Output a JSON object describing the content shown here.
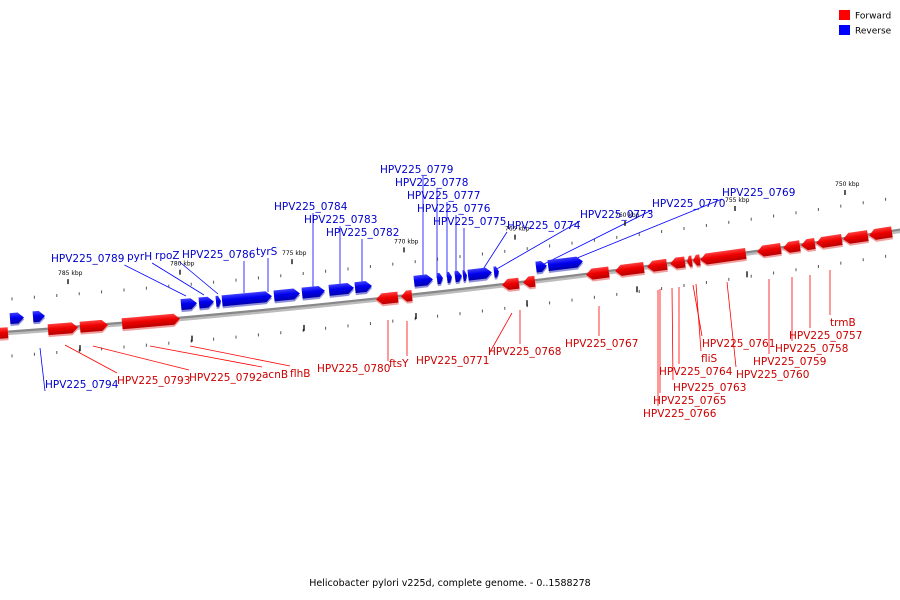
{
  "caption": "Helicobacter pylori v225d, complete genome. - 0..1588278",
  "legend": [
    {
      "label": "Forward",
      "color": "#ff0000"
    },
    {
      "label": "Reverse",
      "color": "#0000ff"
    }
  ],
  "colors": {
    "forward": "#ff0000",
    "forward_label": "#cc0000",
    "reverse": "#0000ff",
    "reverse_label": "#0000cc",
    "backbone": "#888888"
  },
  "ticks": [
    "785 kbp",
    "780 kbp",
    "775 kbp",
    "770 kbp",
    "765 kbp",
    "760 kbp",
    "755 kbp",
    "750 kbp"
  ],
  "reverse_genes": [
    "HPV225_0779",
    "HPV225_0778",
    "HPV225_0777",
    "HPV225_0776",
    "HPV225_0775",
    "HPV225_0784",
    "HPV225_0783",
    "HPV225_0782",
    "HPV225_0774",
    "HPV225_0773",
    "HPV225_0770",
    "HPV225_0769",
    "HPV225_0789",
    "pyrH",
    "rpoZ",
    "HPV225_0786",
    "tyrS",
    "HPV225_0794"
  ],
  "forward_genes": [
    "HPV225_0793",
    "HPV225_0792",
    "acnB",
    "flhB",
    "HPV225_0780",
    "ftsY",
    "HPV225_0771",
    "HPV225_0768",
    "HPV225_0767",
    "HPV225_0761",
    "fliS",
    "HPV225_0764",
    "HPV225_0763",
    "HPV225_0765",
    "HPV225_0766",
    "HPV225_0760",
    "HPV225_0759",
    "HPV225_0758",
    "HPV225_0757",
    "trmB"
  ]
}
